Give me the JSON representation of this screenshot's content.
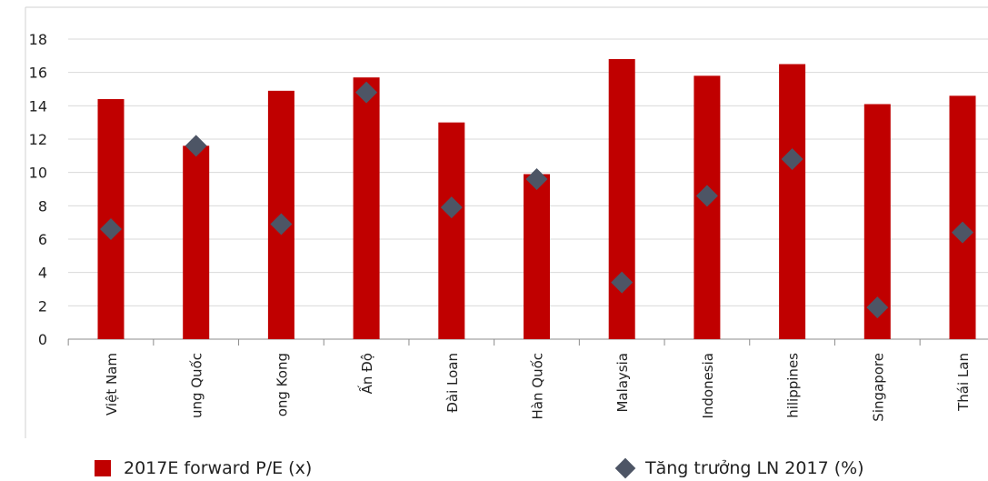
{
  "chart_data": {
    "type": "bar",
    "categories": [
      "Việt Nam",
      "ung Quốc",
      "ong Kong",
      "Ấn Độ",
      "Đài Loan",
      "Hàn Quốc",
      "Malaysia",
      "Indonesia",
      "hilippines",
      "Singapore",
      "Thái Lan"
    ],
    "series": [
      {
        "name": "2017E forward P/E (x)",
        "kind": "bar",
        "color": "#c00000",
        "values": [
          14.4,
          11.6,
          14.9,
          15.7,
          13.0,
          9.9,
          16.8,
          15.8,
          16.5,
          14.1,
          14.6
        ]
      },
      {
        "name": "Tăng trưởng LN 2017 (%)",
        "kind": "marker",
        "color": "#4d5565",
        "values": [
          6.6,
          11.6,
          6.9,
          14.8,
          7.9,
          9.6,
          3.4,
          8.6,
          10.8,
          1.9,
          6.4
        ]
      }
    ],
    "ylim": [
      0,
      18
    ],
    "yticks": [
      0,
      2,
      4,
      6,
      8,
      10,
      12,
      14,
      16,
      18
    ],
    "grid": true,
    "legend_position": "bottom"
  },
  "legend": {
    "bar_label": "2017E forward P/E (x)",
    "marker_label": "Tăng trưởng LN 2017 (%)"
  }
}
